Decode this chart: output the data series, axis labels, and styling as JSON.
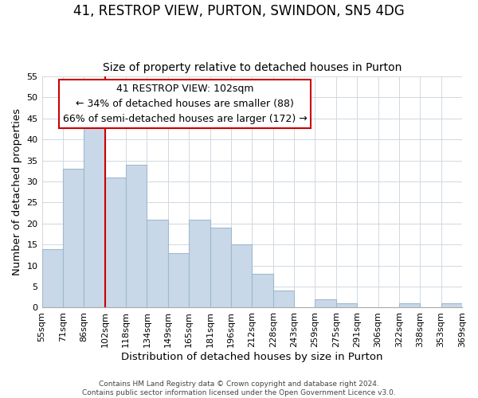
{
  "title": "41, RESTROP VIEW, PURTON, SWINDON, SN5 4DG",
  "subtitle": "Size of property relative to detached houses in Purton",
  "xlabel": "Distribution of detached houses by size in Purton",
  "ylabel": "Number of detached properties",
  "bin_edges": [
    "55sqm",
    "71sqm",
    "86sqm",
    "102sqm",
    "118sqm",
    "134sqm",
    "149sqm",
    "165sqm",
    "181sqm",
    "196sqm",
    "212sqm",
    "228sqm",
    "243sqm",
    "259sqm",
    "275sqm",
    "291sqm",
    "306sqm",
    "322sqm",
    "338sqm",
    "353sqm",
    "369sqm"
  ],
  "bar_values": [
    14,
    33,
    43,
    31,
    34,
    21,
    13,
    21,
    19,
    15,
    8,
    4,
    0,
    2,
    1,
    0,
    0,
    1,
    0,
    1
  ],
  "bar_color": "#c8d8e8",
  "bar_edge_color": "#a0b8cc",
  "vline_pos": 3,
  "vline_color": "#cc0000",
  "ylim": [
    0,
    55
  ],
  "yticks": [
    0,
    5,
    10,
    15,
    20,
    25,
    30,
    35,
    40,
    45,
    50,
    55
  ],
  "annotation_title": "41 RESTROP VIEW: 102sqm",
  "annotation_line1": "← 34% of detached houses are smaller (88)",
  "annotation_line2": "66% of semi-detached houses are larger (172) →",
  "annotation_box_color": "#ffffff",
  "annotation_box_edge": "#cc0000",
  "footer_line1": "Contains HM Land Registry data © Crown copyright and database right 2024.",
  "footer_line2": "Contains public sector information licensed under the Open Government Licence v3.0.",
  "title_fontsize": 12,
  "subtitle_fontsize": 10,
  "axis_label_fontsize": 9.5,
  "tick_fontsize": 8,
  "annotation_fontsize": 9,
  "footer_fontsize": 6.5
}
